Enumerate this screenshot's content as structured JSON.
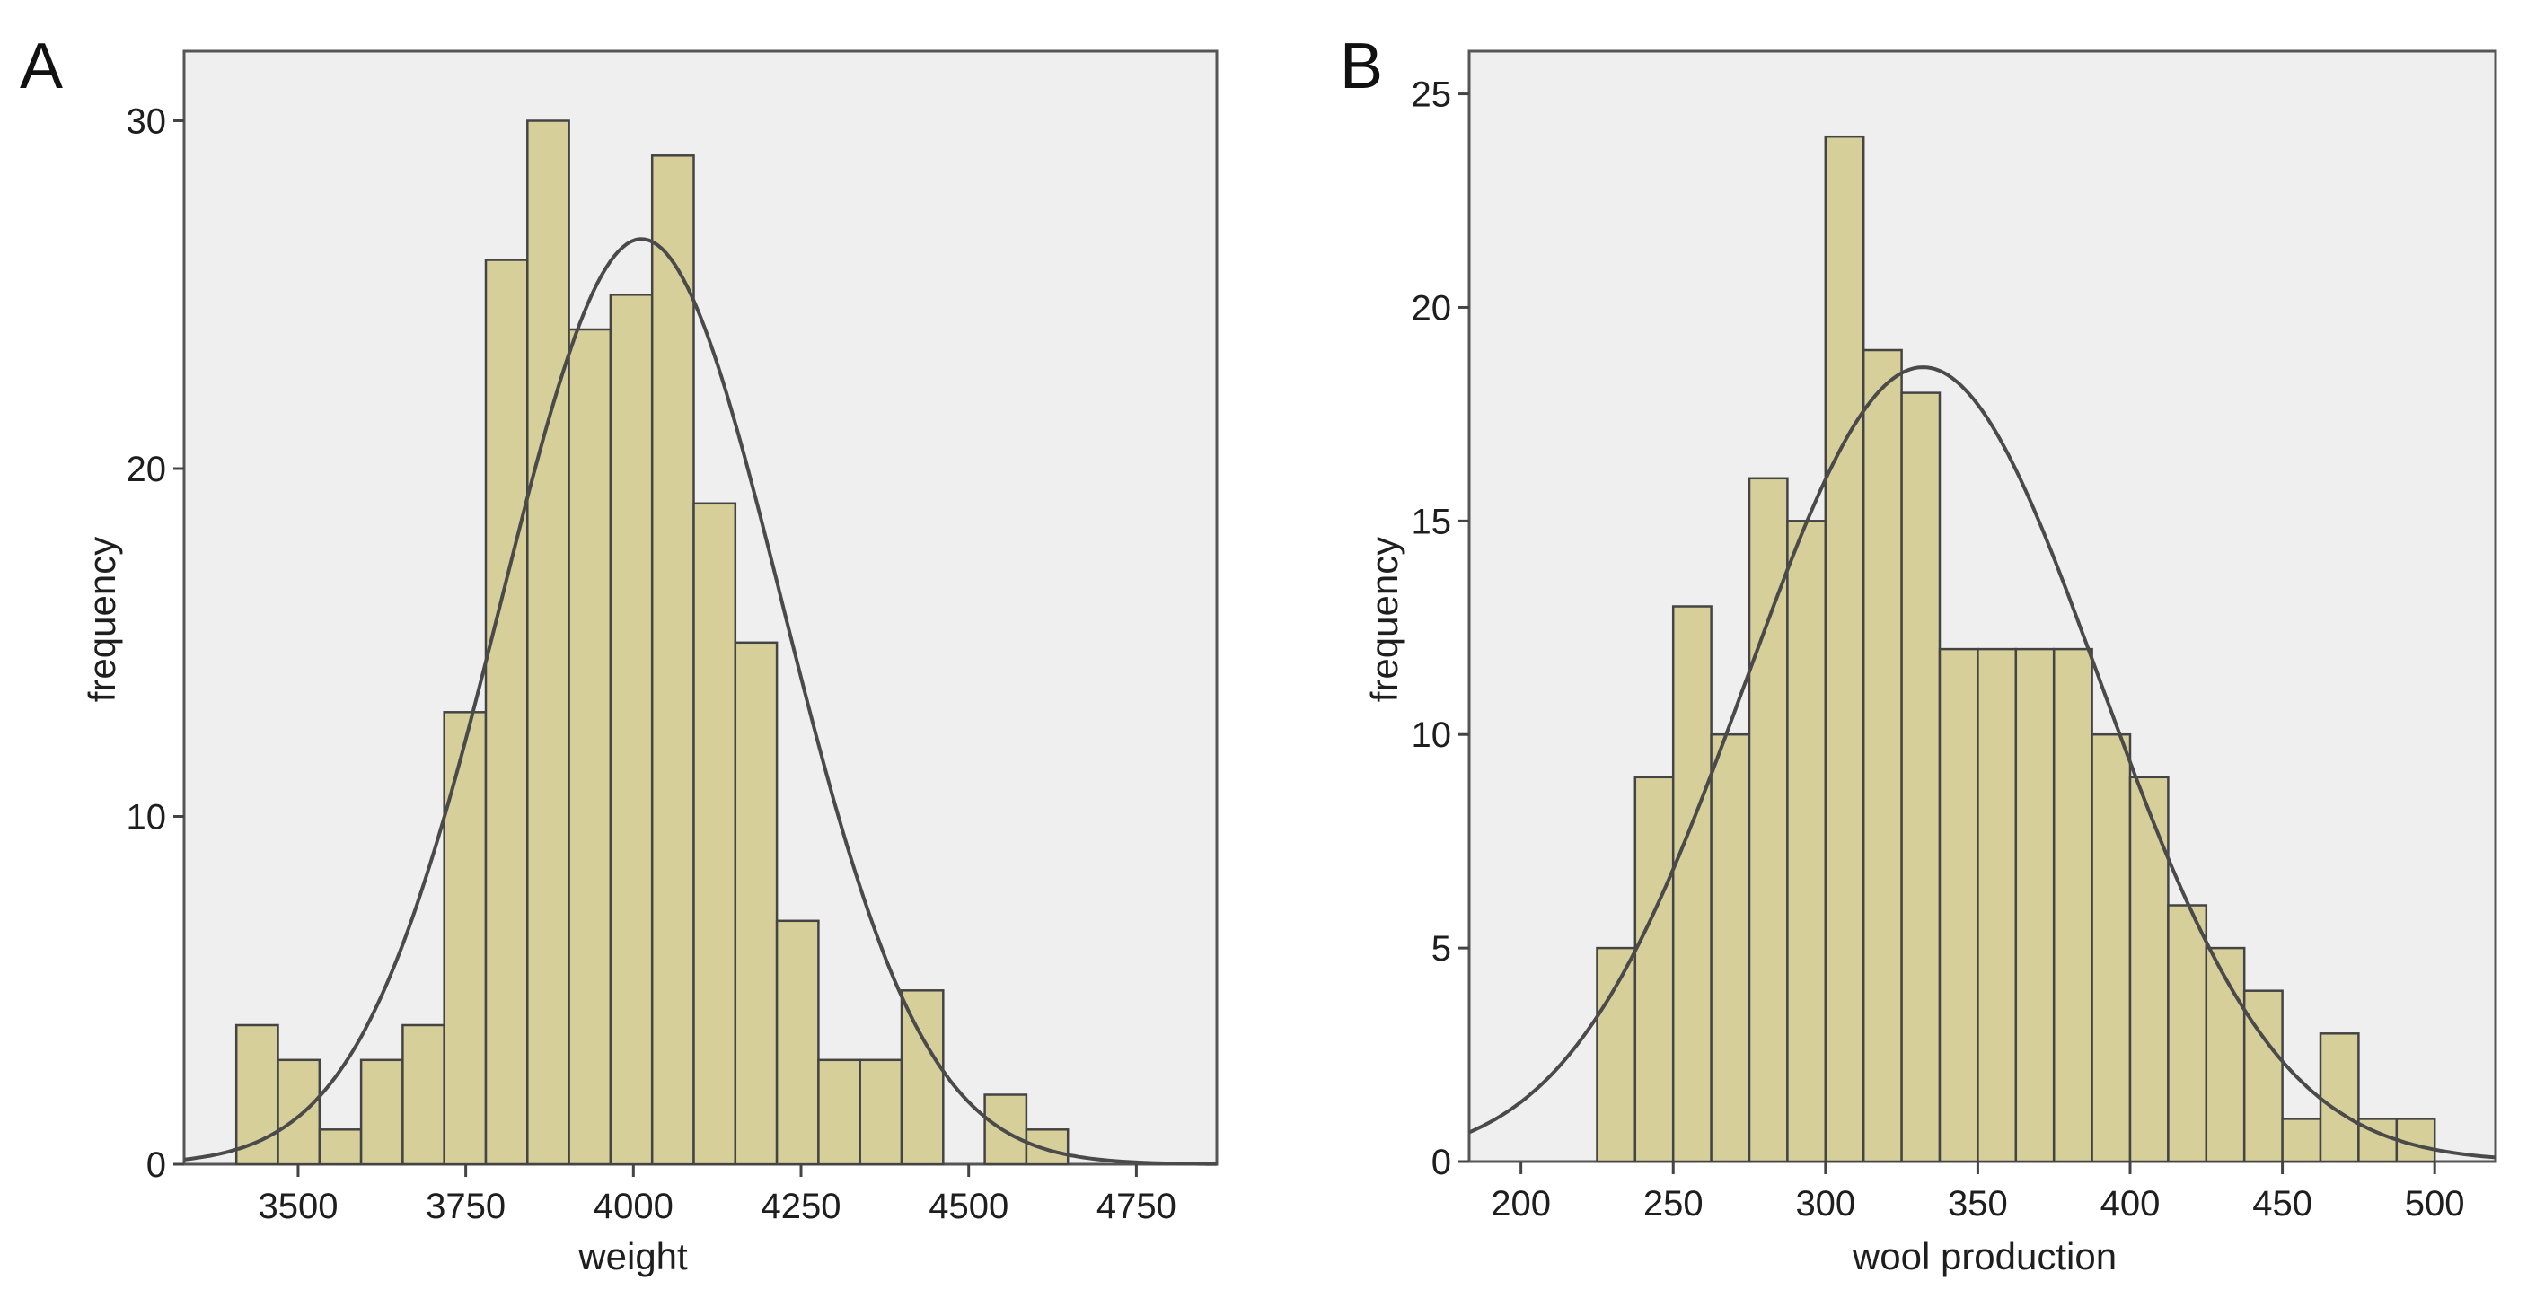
{
  "chart_data": [
    {
      "panel": "A",
      "type": "bar",
      "title": "",
      "xlabel": "weight",
      "ylabel": "frequency",
      "xlim": [
        3330,
        4870
      ],
      "ylim": [
        0,
        32
      ],
      "bin_width": 62,
      "xticks": [
        3500,
        3750,
        4000,
        4250,
        4500,
        4750
      ],
      "yticks": [
        0,
        10,
        20,
        30
      ],
      "bins": [
        {
          "x0": 3408,
          "count": 4
        },
        {
          "x0": 3470,
          "count": 3
        },
        {
          "x0": 3532,
          "count": 1
        },
        {
          "x0": 3594,
          "count": 3
        },
        {
          "x0": 3656,
          "count": 4
        },
        {
          "x0": 3718,
          "count": 13
        },
        {
          "x0": 3780,
          "count": 26
        },
        {
          "x0": 3842,
          "count": 30
        },
        {
          "x0": 3904,
          "count": 24
        },
        {
          "x0": 3966,
          "count": 25
        },
        {
          "x0": 4028,
          "count": 29
        },
        {
          "x0": 4090,
          "count": 19
        },
        {
          "x0": 4152,
          "count": 15
        },
        {
          "x0": 4214,
          "count": 7
        },
        {
          "x0": 4276,
          "count": 3
        },
        {
          "x0": 4338,
          "count": 3
        },
        {
          "x0": 4400,
          "count": 5
        },
        {
          "x0": 4462,
          "count": 0
        },
        {
          "x0": 4524,
          "count": 2
        },
        {
          "x0": 4586,
          "count": 1
        }
      ],
      "normal_curve": {
        "mean": 4012,
        "sd": 210,
        "peak": 26.6
      }
    },
    {
      "panel": "B",
      "type": "bar",
      "title": "",
      "xlabel": "wool production",
      "ylabel": "frequency",
      "xlim": [
        183,
        520
      ],
      "ylim": [
        0,
        26
      ],
      "bin_width": 12.5,
      "xticks": [
        200,
        250,
        300,
        350,
        400,
        450,
        500
      ],
      "yticks": [
        0,
        5,
        10,
        15,
        20,
        25
      ],
      "bins": [
        {
          "x0": 225,
          "count": 5
        },
        {
          "x0": 237.5,
          "count": 9
        },
        {
          "x0": 250,
          "count": 13
        },
        {
          "x0": 262.5,
          "count": 10
        },
        {
          "x0": 275,
          "count": 16
        },
        {
          "x0": 287.5,
          "count": 15
        },
        {
          "x0": 300,
          "count": 24
        },
        {
          "x0": 312.5,
          "count": 19
        },
        {
          "x0": 325,
          "count": 18
        },
        {
          "x0": 337.5,
          "count": 12
        },
        {
          "x0": 350,
          "count": 12
        },
        {
          "x0": 362.5,
          "count": 12
        },
        {
          "x0": 375,
          "count": 12
        },
        {
          "x0": 387.5,
          "count": 10
        },
        {
          "x0": 400,
          "count": 9
        },
        {
          "x0": 412.5,
          "count": 6
        },
        {
          "x0": 425,
          "count": 5
        },
        {
          "x0": 437.5,
          "count": 4
        },
        {
          "x0": 450,
          "count": 1
        },
        {
          "x0": 462.5,
          "count": 3
        },
        {
          "x0": 475,
          "count": 1
        },
        {
          "x0": 487.5,
          "count": 1
        }
      ],
      "normal_curve": {
        "mean": 332,
        "sd": 58,
        "peak": 18.6
      }
    }
  ]
}
